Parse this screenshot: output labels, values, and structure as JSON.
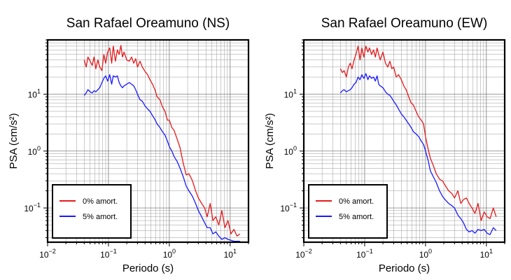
{
  "chart_data": [
    {
      "type": "line",
      "title": "San Rafael Oreamuno (NS)",
      "xlabel": "Periodo (s)",
      "ylabel": "PSA (cm/s²)",
      "xscale": "log",
      "yscale": "log",
      "xlim": [
        0.01,
        20
      ],
      "ylim": [
        0.025,
        90
      ],
      "x_ticks": [
        {
          "value": 0.01,
          "base": "10",
          "exp": "−2"
        },
        {
          "value": 0.1,
          "base": "10",
          "exp": "−1"
        },
        {
          "value": 1,
          "base": "10",
          "exp": "0"
        },
        {
          "value": 10,
          "base": "10",
          "exp": "1"
        }
      ],
      "y_ticks": [
        {
          "value": 0.1,
          "base": "10",
          "exp": "−1"
        },
        {
          "value": 1,
          "base": "10",
          "exp": "0"
        },
        {
          "value": 10,
          "base": "10",
          "exp": "1"
        }
      ],
      "grid": true,
      "legend": {
        "position": "bottom-left",
        "entries": [
          "0% amort.",
          "5% amort."
        ]
      },
      "series": [
        {
          "name": "0% amort.",
          "color": "#e41a1c",
          "x": [
            0.04,
            0.043,
            0.046,
            0.05,
            0.054,
            0.058,
            0.062,
            0.067,
            0.072,
            0.078,
            0.084,
            0.09,
            0.097,
            0.105,
            0.113,
            0.12,
            0.13,
            0.14,
            0.15,
            0.16,
            0.17,
            0.18,
            0.2,
            0.22,
            0.24,
            0.26,
            0.28,
            0.3,
            0.33,
            0.36,
            0.4,
            0.44,
            0.48,
            0.53,
            0.58,
            0.63,
            0.7,
            0.77,
            0.85,
            0.93,
            1.0,
            1.1,
            1.2,
            1.35,
            1.5,
            1.7,
            1.9,
            2.1,
            2.4,
            2.7,
            3.0,
            3.4,
            3.8,
            4.2,
            4.7,
            5.2,
            5.8,
            6.5,
            7.3,
            8.2,
            9.2,
            10.3,
            11.5,
            13.0,
            14.5
          ],
          "y": [
            40,
            30,
            45,
            38,
            32,
            45,
            28,
            40,
            30,
            26,
            50,
            35,
            55,
            65,
            35,
            70,
            38,
            60,
            50,
            72,
            45,
            55,
            40,
            38,
            45,
            35,
            42,
            30,
            38,
            30,
            25,
            22,
            18,
            15,
            12,
            9,
            8,
            6,
            5,
            3.5,
            3.5,
            2.6,
            2.3,
            1.6,
            1.15,
            0.6,
            0.38,
            0.4,
            0.3,
            0.2,
            0.15,
            0.12,
            0.1,
            0.07,
            0.12,
            0.06,
            0.07,
            0.05,
            0.09,
            0.045,
            0.06,
            0.035,
            0.042,
            0.032,
            0.035
          ]
        },
        {
          "name": "5% amort.",
          "color": "#1a1aff",
          "x": [
            0.04,
            0.043,
            0.046,
            0.05,
            0.054,
            0.058,
            0.062,
            0.067,
            0.072,
            0.078,
            0.084,
            0.09,
            0.097,
            0.105,
            0.113,
            0.12,
            0.13,
            0.14,
            0.15,
            0.16,
            0.17,
            0.18,
            0.2,
            0.22,
            0.24,
            0.26,
            0.28,
            0.3,
            0.33,
            0.36,
            0.4,
            0.44,
            0.48,
            0.53,
            0.58,
            0.63,
            0.7,
            0.77,
            0.85,
            0.93,
            1.0,
            1.1,
            1.2,
            1.35,
            1.5,
            1.7,
            1.9,
            2.1,
            2.4,
            2.7,
            3.0,
            3.4,
            3.8,
            4.2,
            4.7,
            5.2,
            5.8,
            6.5,
            7.3,
            8.2,
            9.2,
            10.3,
            11.5,
            13.0,
            14.5
          ],
          "y": [
            9.5,
            10.5,
            12,
            11,
            10.5,
            11.5,
            11,
            12,
            13,
            16,
            19,
            21,
            17,
            22,
            15,
            21,
            20,
            21,
            16,
            14,
            13,
            14,
            15,
            16,
            15,
            14,
            12,
            10,
            8,
            7.5,
            6.2,
            5.5,
            5,
            4.2,
            3.6,
            3,
            2.6,
            2.2,
            1.9,
            1.5,
            1.2,
            1,
            0.8,
            0.65,
            0.5,
            0.35,
            0.24,
            0.2,
            0.16,
            0.12,
            0.09,
            0.07,
            0.055,
            0.045,
            0.045,
            0.035,
            0.038,
            0.032,
            0.028,
            0.03,
            0.028,
            0.027,
            0.026,
            0.026,
            0.026
          ]
        }
      ]
    },
    {
      "type": "line",
      "title": "San Rafael Oreamuno (EW)",
      "xlabel": "Periodo (s)",
      "ylabel": "PSA (cm/s²)",
      "xscale": "log",
      "yscale": "log",
      "xlim": [
        0.01,
        20
      ],
      "ylim": [
        0.025,
        90
      ],
      "x_ticks": [
        {
          "value": 0.01,
          "base": "10",
          "exp": "−2"
        },
        {
          "value": 0.1,
          "base": "10",
          "exp": "−1"
        },
        {
          "value": 1,
          "base": "10",
          "exp": "0"
        },
        {
          "value": 10,
          "base": "10",
          "exp": "1"
        }
      ],
      "y_ticks": [
        {
          "value": 0.1,
          "base": "10",
          "exp": "−1"
        },
        {
          "value": 1,
          "base": "10",
          "exp": "0"
        },
        {
          "value": 10,
          "base": "10",
          "exp": "1"
        }
      ],
      "grid": true,
      "legend": {
        "position": "bottom-left",
        "entries": [
          "0% amort.",
          "5% amort."
        ]
      },
      "series": [
        {
          "name": "0% amort.",
          "color": "#e41a1c",
          "x": [
            0.04,
            0.043,
            0.046,
            0.05,
            0.054,
            0.058,
            0.062,
            0.067,
            0.072,
            0.078,
            0.084,
            0.09,
            0.097,
            0.105,
            0.113,
            0.12,
            0.13,
            0.14,
            0.15,
            0.16,
            0.17,
            0.18,
            0.2,
            0.22,
            0.24,
            0.26,
            0.28,
            0.3,
            0.33,
            0.36,
            0.4,
            0.44,
            0.48,
            0.53,
            0.58,
            0.63,
            0.7,
            0.77,
            0.85,
            0.93,
            1.0,
            1.1,
            1.2,
            1.35,
            1.5,
            1.7,
            1.9,
            2.1,
            2.4,
            2.7,
            3.0,
            3.4,
            3.8,
            4.2,
            4.7,
            5.2,
            5.8,
            6.5,
            7.3,
            8.2,
            9.2,
            10.3,
            11.5,
            13.0,
            14.5
          ],
          "y": [
            28,
            24,
            26,
            20,
            30,
            35,
            28,
            40,
            50,
            70,
            40,
            65,
            45,
            70,
            55,
            65,
            50,
            60,
            45,
            65,
            50,
            40,
            55,
            35,
            30,
            38,
            28,
            30,
            20,
            22,
            18,
            14,
            12,
            9,
            7,
            6.5,
            5,
            4,
            3.5,
            3,
            1.8,
            1.1,
            0.75,
            0.55,
            0.4,
            0.32,
            0.3,
            0.25,
            0.2,
            0.18,
            0.15,
            0.2,
            0.12,
            0.14,
            0.15,
            0.12,
            0.1,
            0.08,
            0.12,
            0.06,
            0.085,
            0.07,
            0.065,
            0.1,
            0.07
          ]
        },
        {
          "name": "5% amort.",
          "color": "#1a1aff",
          "x": [
            0.04,
            0.043,
            0.046,
            0.05,
            0.054,
            0.058,
            0.062,
            0.067,
            0.072,
            0.078,
            0.084,
            0.09,
            0.097,
            0.105,
            0.113,
            0.12,
            0.13,
            0.14,
            0.15,
            0.16,
            0.17,
            0.18,
            0.2,
            0.22,
            0.24,
            0.26,
            0.28,
            0.3,
            0.33,
            0.36,
            0.4,
            0.44,
            0.48,
            0.53,
            0.58,
            0.63,
            0.7,
            0.77,
            0.85,
            0.93,
            1.0,
            1.1,
            1.2,
            1.35,
            1.5,
            1.7,
            1.9,
            2.1,
            2.4,
            2.7,
            3.0,
            3.4,
            3.8,
            4.2,
            4.7,
            5.2,
            5.8,
            6.5,
            7.3,
            8.2,
            9.2,
            10.3,
            11.5,
            13.0,
            14.5
          ],
          "y": [
            10.5,
            11.5,
            12,
            11,
            11.5,
            12,
            13,
            15,
            16,
            20,
            18,
            22,
            19,
            23,
            18,
            21,
            19,
            20,
            17,
            21,
            15,
            14,
            13,
            11,
            10,
            9.5,
            8.5,
            7.5,
            6.5,
            5.5,
            4.5,
            4,
            3.5,
            3,
            2.6,
            2.2,
            2,
            1.8,
            1.5,
            1.3,
            1,
            0.7,
            0.45,
            0.35,
            0.28,
            0.2,
            0.16,
            0.14,
            0.12,
            0.11,
            0.1,
            0.075,
            0.065,
            0.055,
            0.042,
            0.038,
            0.04,
            0.036,
            0.042,
            0.04,
            0.042,
            0.036,
            0.034,
            0.045,
            0.04
          ]
        }
      ]
    }
  ]
}
